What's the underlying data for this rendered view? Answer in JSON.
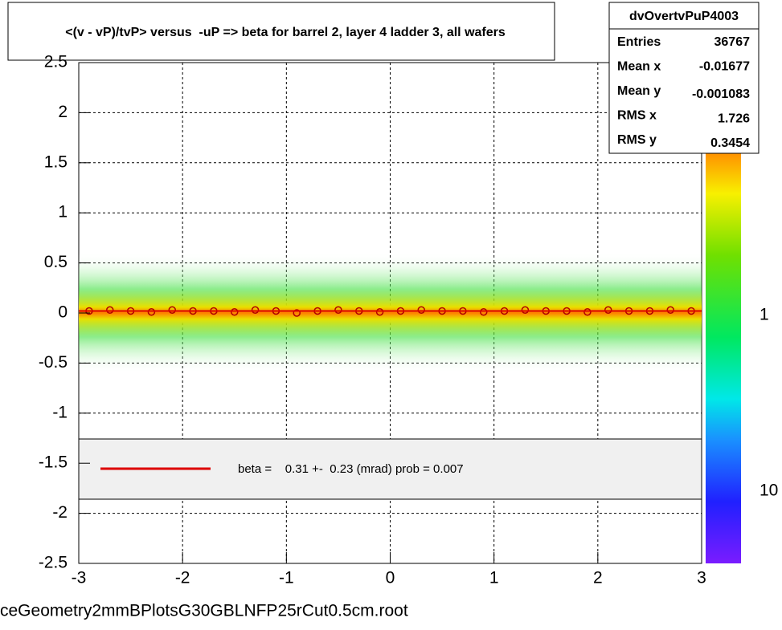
{
  "chart_data": {
    "type": "profile2d",
    "title": "<(v - vP)/tvP> versus  -uP => beta for barrel 2, layer 4 ladder 3, all wafers",
    "xlim": [
      -3,
      3
    ],
    "xticks": [
      -3,
      -2,
      -1,
      0,
      1,
      2,
      3
    ],
    "ylim": [
      -2.5,
      2.5
    ],
    "yticks": [
      -2.5,
      -2,
      -1.5,
      -1,
      -0.5,
      0,
      0.5,
      1,
      1.5,
      2,
      2.5
    ],
    "grid": true,
    "series": [
      {
        "name": "profile",
        "color": "#b00000",
        "x": [
          -2.9,
          -2.7,
          -2.5,
          -2.3,
          -2.1,
          -1.9,
          -1.7,
          -1.5,
          -1.3,
          -1.1,
          -0.9,
          -0.7,
          -0.5,
          -0.3,
          -0.1,
          0.1,
          0.3,
          0.5,
          0.7,
          0.9,
          1.1,
          1.3,
          1.5,
          1.7,
          1.9,
          2.1,
          2.3,
          2.5,
          2.7,
          2.9
        ],
        "values": [
          0.02,
          0.03,
          0.02,
          0.01,
          0.03,
          0.02,
          0.02,
          0.01,
          0.03,
          0.02,
          0.0,
          0.02,
          0.03,
          0.02,
          0.01,
          0.02,
          0.03,
          0.02,
          0.02,
          0.01,
          0.02,
          0.03,
          0.02,
          0.02,
          0.01,
          0.03,
          0.02,
          0.02,
          0.03,
          0.02
        ]
      }
    ],
    "fit_legend": "beta =    0.31 +-  0.23 (mrad) prob = 0.007",
    "fit_color": "#dd0000",
    "palette_labels": [
      "1",
      "10"
    ],
    "stats": {
      "name": "dvOvertvPuP4003",
      "rows": [
        [
          "Entries",
          "36767"
        ],
        [
          "Mean x",
          "-0.01677"
        ],
        [
          "Mean y",
          "-0.001083"
        ],
        [
          "RMS x",
          "1.726"
        ],
        [
          "RMS y",
          "0.3454"
        ]
      ]
    },
    "footer": "ceGeometry2mmBPlotsG30GBLNFP25rCut0.5cm.root"
  }
}
